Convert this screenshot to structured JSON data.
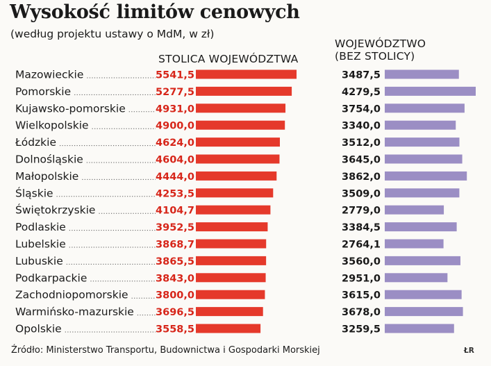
{
  "title": "Wysokość limitów cenowych",
  "subtitle": "(według projektu ustawy o MdM, w zł)",
  "source": "Źródło: Ministerstwo Transportu, Budownictwa i Gospodarki Morskiej",
  "initials": "ŁR",
  "colors": {
    "capital": "#e5392b",
    "region": "#9b8ec4",
    "label_accent": "#d7261a"
  },
  "chart_data": {
    "type": "bar",
    "categories": [
      "Mazowieckie",
      "Pomorskie",
      "Kujawsko-pomorskie",
      "Wielkopolskie",
      "Łódzkie",
      "Dolnośląskie",
      "Małopolskie",
      "Śląskie",
      "Świętokrzyskie",
      "Podlaskie",
      "Lubelskie",
      "Lubuskie",
      "Podkarpackie",
      "Zachodniopomorskie",
      "Warmińsko-mazurskie",
      "Opolskie"
    ],
    "series": [
      {
        "name": "STOLICA WOJEWÓDZTWA",
        "values": [
          5541.5,
          5277.5,
          4931.0,
          4900.0,
          4624.0,
          4604.0,
          4444.0,
          4253.5,
          4104.7,
          3952.5,
          3868.7,
          3865.5,
          3843.0,
          3800.0,
          3696.5,
          3558.5
        ],
        "labels": [
          "5541,5",
          "5277,5",
          "4931,0",
          "4900,0",
          "4624,0",
          "4604,0",
          "4444,0",
          "4253,5",
          "4104,7",
          "3952,5",
          "3868,7",
          "3865,5",
          "3843,0",
          "3800,0",
          "3696,5",
          "3558,5"
        ]
      },
      {
        "name": "WOJEWÓDZTWO (BEZ STOLICY)",
        "values": [
          3487.5,
          4279.5,
          3754.0,
          3340.0,
          3512.0,
          3645.0,
          3862.0,
          3509.0,
          2779.0,
          3384.5,
          2764.1,
          3560.0,
          2951.0,
          3615.0,
          3678.0,
          3259.5
        ],
        "labels": [
          "3487,5",
          "4279,5",
          "3754,0",
          "3340,0",
          "3512,0",
          "3645,0",
          "3862,0",
          "3509,0",
          "2779,0",
          "3384,5",
          "2764,1",
          "3560,0",
          "2951,0",
          "3615,0",
          "3678,0",
          "3259,5"
        ]
      }
    ],
    "legend_1_line1": "STOLICA WOJEWÓDZTWA",
    "legend_2_line1": "WOJEWÓDZTWO",
    "legend_2_line2": "(BEZ STOLICY)"
  }
}
